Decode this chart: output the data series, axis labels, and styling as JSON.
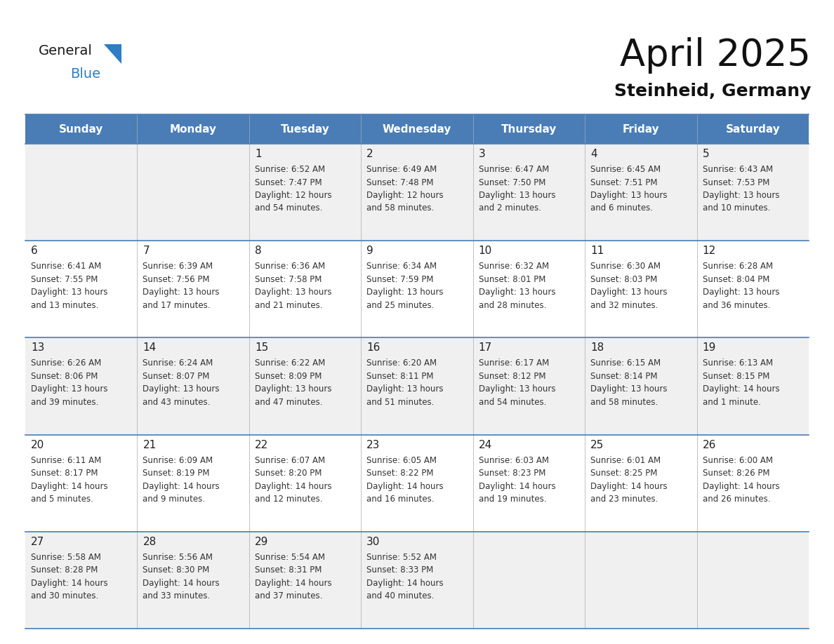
{
  "title": "April 2025",
  "subtitle": "Steinheid, Germany",
  "header_bg": "#4a7db5",
  "header_text": "#ffffff",
  "row_bg_even": "#f0f0f0",
  "row_bg_odd": "#ffffff",
  "day_number_color": "#222222",
  "cell_text_color": "#333333",
  "grid_line_color": "#4a7db5",
  "separator_color": "#4a7db5",
  "days_of_week": [
    "Sunday",
    "Monday",
    "Tuesday",
    "Wednesday",
    "Thursday",
    "Friday",
    "Saturday"
  ],
  "logo_general_color": "#1a1a1a",
  "logo_blue_color": "#2e7dc5",
  "logo_triangle_color": "#2e7dc5",
  "title_color": "#111111",
  "subtitle_color": "#111111",
  "title_fontsize": 38,
  "subtitle_fontsize": 18,
  "header_fontsize": 11,
  "day_number_fontsize": 11,
  "cell_info_fontsize": 8.5,
  "weeks": [
    [
      {
        "day": "",
        "info": ""
      },
      {
        "day": "",
        "info": ""
      },
      {
        "day": "1",
        "info": "Sunrise: 6:52 AM\nSunset: 7:47 PM\nDaylight: 12 hours\nand 54 minutes."
      },
      {
        "day": "2",
        "info": "Sunrise: 6:49 AM\nSunset: 7:48 PM\nDaylight: 12 hours\nand 58 minutes."
      },
      {
        "day": "3",
        "info": "Sunrise: 6:47 AM\nSunset: 7:50 PM\nDaylight: 13 hours\nand 2 minutes."
      },
      {
        "day": "4",
        "info": "Sunrise: 6:45 AM\nSunset: 7:51 PM\nDaylight: 13 hours\nand 6 minutes."
      },
      {
        "day": "5",
        "info": "Sunrise: 6:43 AM\nSunset: 7:53 PM\nDaylight: 13 hours\nand 10 minutes."
      }
    ],
    [
      {
        "day": "6",
        "info": "Sunrise: 6:41 AM\nSunset: 7:55 PM\nDaylight: 13 hours\nand 13 minutes."
      },
      {
        "day": "7",
        "info": "Sunrise: 6:39 AM\nSunset: 7:56 PM\nDaylight: 13 hours\nand 17 minutes."
      },
      {
        "day": "8",
        "info": "Sunrise: 6:36 AM\nSunset: 7:58 PM\nDaylight: 13 hours\nand 21 minutes."
      },
      {
        "day": "9",
        "info": "Sunrise: 6:34 AM\nSunset: 7:59 PM\nDaylight: 13 hours\nand 25 minutes."
      },
      {
        "day": "10",
        "info": "Sunrise: 6:32 AM\nSunset: 8:01 PM\nDaylight: 13 hours\nand 28 minutes."
      },
      {
        "day": "11",
        "info": "Sunrise: 6:30 AM\nSunset: 8:03 PM\nDaylight: 13 hours\nand 32 minutes."
      },
      {
        "day": "12",
        "info": "Sunrise: 6:28 AM\nSunset: 8:04 PM\nDaylight: 13 hours\nand 36 minutes."
      }
    ],
    [
      {
        "day": "13",
        "info": "Sunrise: 6:26 AM\nSunset: 8:06 PM\nDaylight: 13 hours\nand 39 minutes."
      },
      {
        "day": "14",
        "info": "Sunrise: 6:24 AM\nSunset: 8:07 PM\nDaylight: 13 hours\nand 43 minutes."
      },
      {
        "day": "15",
        "info": "Sunrise: 6:22 AM\nSunset: 8:09 PM\nDaylight: 13 hours\nand 47 minutes."
      },
      {
        "day": "16",
        "info": "Sunrise: 6:20 AM\nSunset: 8:11 PM\nDaylight: 13 hours\nand 51 minutes."
      },
      {
        "day": "17",
        "info": "Sunrise: 6:17 AM\nSunset: 8:12 PM\nDaylight: 13 hours\nand 54 minutes."
      },
      {
        "day": "18",
        "info": "Sunrise: 6:15 AM\nSunset: 8:14 PM\nDaylight: 13 hours\nand 58 minutes."
      },
      {
        "day": "19",
        "info": "Sunrise: 6:13 AM\nSunset: 8:15 PM\nDaylight: 14 hours\nand 1 minute."
      }
    ],
    [
      {
        "day": "20",
        "info": "Sunrise: 6:11 AM\nSunset: 8:17 PM\nDaylight: 14 hours\nand 5 minutes."
      },
      {
        "day": "21",
        "info": "Sunrise: 6:09 AM\nSunset: 8:19 PM\nDaylight: 14 hours\nand 9 minutes."
      },
      {
        "day": "22",
        "info": "Sunrise: 6:07 AM\nSunset: 8:20 PM\nDaylight: 14 hours\nand 12 minutes."
      },
      {
        "day": "23",
        "info": "Sunrise: 6:05 AM\nSunset: 8:22 PM\nDaylight: 14 hours\nand 16 minutes."
      },
      {
        "day": "24",
        "info": "Sunrise: 6:03 AM\nSunset: 8:23 PM\nDaylight: 14 hours\nand 19 minutes."
      },
      {
        "day": "25",
        "info": "Sunrise: 6:01 AM\nSunset: 8:25 PM\nDaylight: 14 hours\nand 23 minutes."
      },
      {
        "day": "26",
        "info": "Sunrise: 6:00 AM\nSunset: 8:26 PM\nDaylight: 14 hours\nand 26 minutes."
      }
    ],
    [
      {
        "day": "27",
        "info": "Sunrise: 5:58 AM\nSunset: 8:28 PM\nDaylight: 14 hours\nand 30 minutes."
      },
      {
        "day": "28",
        "info": "Sunrise: 5:56 AM\nSunset: 8:30 PM\nDaylight: 14 hours\nand 33 minutes."
      },
      {
        "day": "29",
        "info": "Sunrise: 5:54 AM\nSunset: 8:31 PM\nDaylight: 14 hours\nand 37 minutes."
      },
      {
        "day": "30",
        "info": "Sunrise: 5:52 AM\nSunset: 8:33 PM\nDaylight: 14 hours\nand 40 minutes."
      },
      {
        "day": "",
        "info": ""
      },
      {
        "day": "",
        "info": ""
      },
      {
        "day": "",
        "info": ""
      }
    ]
  ]
}
